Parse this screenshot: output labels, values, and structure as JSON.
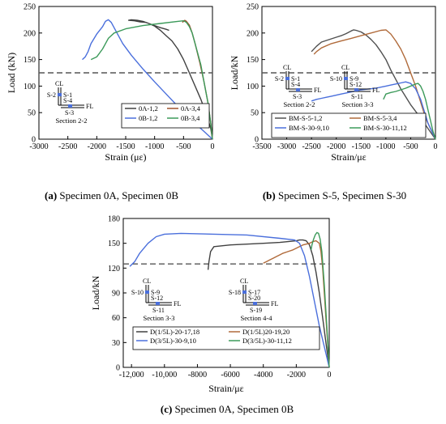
{
  "captions": [
    {
      "letter": "(a)",
      "text": "Specimen 0A, Specimen 0B"
    },
    {
      "letter": "(b)",
      "text": "Specimen S-5, Specimen S-30"
    },
    {
      "letter": "(c)",
      "text": "Specimen 0A, Specimen 0B"
    }
  ],
  "chart_data": [
    {
      "type": "line",
      "ylabel": "Load (kN)",
      "xlabel": "Strain (με)",
      "xlim": [
        -3000,
        0
      ],
      "ylim": [
        0,
        250
      ],
      "xticks": [
        "-3000",
        "-2500",
        "-2000",
        "-1500",
        "-1000",
        "-500",
        "0"
      ],
      "yticks": [
        "0",
        "50",
        "100",
        "150",
        "200",
        "250"
      ],
      "reference_line": 125,
      "legend_position": "bottom-center",
      "inset": {
        "labels": [
          "CL",
          "S-2",
          "S-1",
          "S-4",
          "S-3",
          "FL"
        ],
        "section": "Section 2-2"
      },
      "series": [
        {
          "name": "0A-1,2",
          "color": "#404040",
          "x": [
            0,
            -30,
            -100,
            -200,
            -300,
            -400,
            -500,
            -600,
            -700,
            -800,
            -900,
            -1000,
            -1100,
            -1200,
            -1300,
            -1400,
            -1450,
            -1350,
            -1250,
            -1150,
            -1100,
            -1000,
            -900,
            -800,
            -750
          ],
          "y": [
            0,
            20,
            45,
            75,
            100,
            125,
            150,
            170,
            185,
            195,
            205,
            213,
            218,
            222,
            224,
            225,
            224,
            223,
            221,
            220,
            218,
            214,
            210,
            207,
            205
          ]
        },
        {
          "name": "0A-3,4",
          "color": "#a0522d",
          "x": [
            0,
            -30,
            -80,
            -150,
            -220,
            -300,
            -350,
            -400,
            -450,
            -480,
            -500,
            -520
          ],
          "y": [
            0,
            30,
            70,
            110,
            145,
            180,
            200,
            215,
            222,
            224,
            222,
            220
          ]
        },
        {
          "name": "0B-1,2",
          "color": "#4a6fdc",
          "x": [
            0,
            -200,
            -400,
            -600,
            -800,
            -1000,
            -1200,
            -1400,
            -1550,
            -1650,
            -1750,
            -1800,
            -1850,
            -1900,
            -2000,
            -2100,
            -2150,
            -2200,
            -2250
          ],
          "y": [
            0,
            20,
            40,
            62,
            85,
            108,
            132,
            158,
            180,
            200,
            220,
            225,
            222,
            212,
            198,
            180,
            165,
            155,
            150
          ]
        },
        {
          "name": "0B-3,4",
          "color": "#3c9a5a",
          "x": [
            0,
            -30,
            -80,
            -150,
            -200,
            -300,
            -350,
            -400,
            -450,
            -500,
            -600,
            -900,
            -1200,
            -1500,
            -1700,
            -1800,
            -1900,
            -2000,
            -2100
          ],
          "y": [
            0,
            30,
            70,
            110,
            140,
            180,
            200,
            212,
            220,
            223,
            222,
            218,
            214,
            208,
            200,
            190,
            170,
            155,
            150
          ]
        }
      ]
    },
    {
      "type": "line",
      "ylabel": "Load/kN",
      "xlabel": "Strain/με",
      "xlim": [
        -3500,
        0
      ],
      "ylim": [
        0,
        250
      ],
      "xticks": [
        "-3500",
        "-3000",
        "-2500",
        "-2000",
        "-1500",
        "-1000",
        "-500",
        "0"
      ],
      "yticks": [
        "0",
        "50",
        "100",
        "150",
        "200",
        "250"
      ],
      "reference_line": 125,
      "legend_position": "bottom-center",
      "insets": [
        {
          "labels": [
            "CL",
            "S-2",
            "S-1",
            "S-4",
            "S-3",
            "FL"
          ],
          "section": "Section 2-2"
        },
        {
          "labels": [
            "CL",
            "S-10",
            "S-9",
            "S-12",
            "S-11",
            "FL"
          ],
          "section": "Section 3-3"
        }
      ],
      "series": [
        {
          "name": "BM-S-5-1,2",
          "color": "#505050",
          "x": [
            0,
            -150,
            -300,
            -500,
            -700,
            -900,
            -1000,
            -1100,
            -1200,
            -1300,
            -1400,
            -1500,
            -1600,
            -1650,
            -1700,
            -1800,
            -1900,
            -2000,
            -2100,
            -2200,
            -2300,
            -2400,
            -2500
          ],
          "y": [
            0,
            20,
            40,
            65,
            95,
            130,
            150,
            165,
            178,
            188,
            196,
            202,
            205,
            206,
            204,
            199,
            195,
            192,
            189,
            186,
            183,
            175,
            165
          ]
        },
        {
          "name": "BM-S-5-3,4",
          "color": "#b06a3a",
          "x": [
            0,
            -100,
            -200,
            -300,
            -400,
            -500,
            -600,
            -700,
            -800,
            -900,
            -1000,
            -1100,
            -1300,
            -1500,
            -1700,
            -1900,
            -2100,
            -2300,
            -2400,
            -2450
          ],
          "y": [
            0,
            20,
            40,
            70,
            100,
            125,
            150,
            170,
            185,
            198,
            206,
            205,
            200,
            195,
            190,
            185,
            180,
            172,
            165,
            160
          ]
        },
        {
          "name": "BM-S-30-9,10",
          "color": "#4a6fdc",
          "x": [
            0,
            -50,
            -100,
            -150,
            -200,
            -250,
            -300,
            -400,
            -500,
            -600,
            -700,
            -800,
            -900,
            -1000,
            -1100,
            -1200,
            -1300,
            -1400,
            -1500,
            -1600,
            -1700,
            -1800,
            -1900,
            -2000,
            -2100,
            -2200,
            -2300,
            -2400,
            -2500
          ],
          "y": [
            0,
            10,
            20,
            30,
            45,
            60,
            75,
            95,
            105,
            108,
            106,
            104,
            102,
            100,
            98,
            96,
            95,
            94,
            93,
            91,
            89,
            87,
            85,
            83,
            81,
            79,
            77,
            75,
            72
          ]
        },
        {
          "name": "BM-S-30-11,12",
          "color": "#3c9a5a",
          "x": [
            0,
            -50,
            -100,
            -150,
            -200,
            -250,
            -300,
            -350,
            -400,
            -450,
            -500,
            -550,
            -600,
            -700,
            -800,
            -900,
            -1000,
            -1050
          ],
          "y": [
            0,
            15,
            35,
            55,
            75,
            90,
            100,
            105,
            104,
            102,
            100,
            98,
            96,
            93,
            90,
            88,
            85,
            75
          ]
        }
      ]
    },
    {
      "type": "line",
      "ylabel": "Load/kN",
      "xlabel": "Strain/με",
      "xlim": [
        -12500,
        0
      ],
      "ylim": [
        0,
        180
      ],
      "xticks": [
        "-12,000",
        "-10,000",
        "-8000",
        "-6000",
        "-4000",
        "-2000",
        "0"
      ],
      "xtick_values": [
        -12000,
        -10000,
        -8000,
        -6000,
        -4000,
        -2000,
        0
      ],
      "yticks": [
        "0",
        "30",
        "60",
        "90",
        "120",
        "150",
        "180"
      ],
      "reference_line": 125,
      "legend_position": "bottom-left",
      "insets": [
        {
          "labels": [
            "CL",
            "S-10",
            "S-9",
            "S-12",
            "S-11",
            "FL"
          ],
          "section": "Section 3-3"
        },
        {
          "labels": [
            "CL",
            "S-18",
            "S-17",
            "S-20",
            "S-19",
            "FL"
          ],
          "section": "Section 4-4"
        }
      ],
      "series": [
        {
          "name": "D(1/5L)-20-17,18",
          "color": "#404040",
          "x": [
            0,
            -200,
            -400,
            -600,
            -800,
            -1000,
            -1200,
            -1400,
            -1600,
            -1800,
            -2000,
            -3000,
            -4000,
            -5000,
            -6000,
            -7000,
            -7200,
            -7300,
            -7350
          ],
          "y": [
            0,
            30,
            60,
            90,
            115,
            135,
            148,
            153,
            154,
            154,
            153,
            151,
            150,
            149,
            148,
            146,
            140,
            128,
            118
          ]
        },
        {
          "name": "D(1/5L)20-19,20",
          "color": "#b06a3a",
          "x": [
            0,
            -100,
            -200,
            -300,
            -400,
            -500,
            -600,
            -800,
            -1000,
            -1200,
            -1400,
            -1600,
            -1800,
            -2000,
            -2200,
            -2500,
            -2800,
            -3000,
            -3200,
            -3400,
            -3600,
            -3800,
            -4000
          ],
          "y": [
            0,
            30,
            60,
            90,
            120,
            140,
            150,
            153,
            152,
            150,
            149,
            148,
            146,
            144,
            142,
            140,
            138,
            136,
            134,
            132,
            130,
            128,
            126
          ]
        },
        {
          "name": "D(3/5L)-30-9,10",
          "color": "#4a6fdc",
          "x": [
            0,
            -300,
            -600,
            -900,
            -1200,
            -1500,
            -1800,
            -2100,
            -3000,
            -5000,
            -7000,
            -9000,
            -10000,
            -10500,
            -11000,
            -11500,
            -11800,
            -12100
          ],
          "y": [
            0,
            25,
            50,
            80,
            110,
            135,
            150,
            154,
            156,
            160,
            161,
            162,
            161,
            158,
            150,
            138,
            128,
            122
          ]
        },
        {
          "name": "D(3/5L)-30-11,12",
          "color": "#3c9a5a",
          "x": [
            0,
            -150,
            -300,
            -450,
            -550,
            -650,
            -750,
            -850,
            -950,
            -1050,
            -1100
          ],
          "y": [
            0,
            50,
            100,
            140,
            155,
            162,
            163,
            160,
            155,
            148,
            142
          ]
        }
      ]
    }
  ]
}
